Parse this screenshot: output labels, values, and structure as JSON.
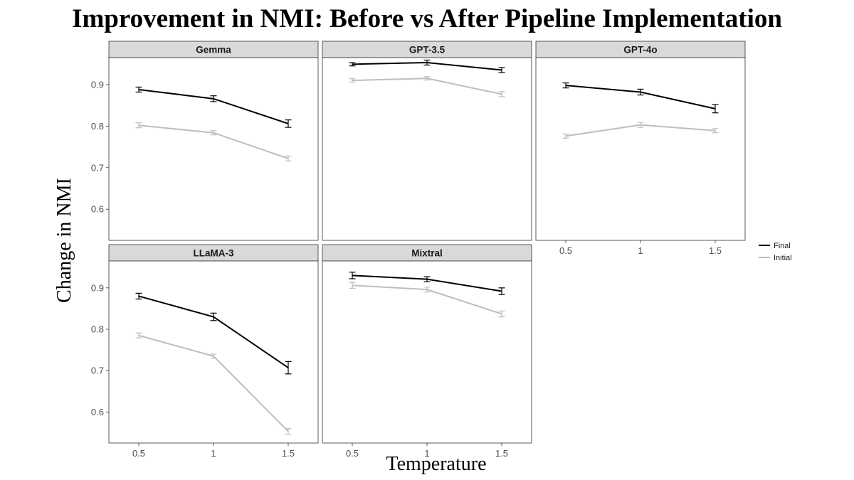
{
  "chart_data": {
    "type": "line",
    "title": "Improvement in NMI: Before vs After Pipeline Implementation",
    "xlabel": "Temperature",
    "ylabel": "Change in NMI",
    "x": [
      0.5,
      1,
      1.5
    ],
    "x_tick_labels": [
      "0.5",
      "1",
      "1.5"
    ],
    "y_ticks": [
      0.6,
      0.7,
      0.8,
      0.9
    ],
    "y_tick_labels": [
      "0.6",
      "0.7",
      "0.8",
      "0.9"
    ],
    "xlim": [
      0.3,
      1.7
    ],
    "ylim": [
      0.525,
      0.965
    ],
    "grid": false,
    "legend_position": "right",
    "legend": [
      {
        "name": "Final",
        "color": "#000000"
      },
      {
        "name": "Initial",
        "color": "#bdbdbd"
      }
    ],
    "panels": [
      {
        "name": "Gemma",
        "series": [
          {
            "name": "Final",
            "values": [
              0.888,
              0.866,
              0.806
            ],
            "errors": [
              0.006,
              0.007,
              0.009
            ]
          },
          {
            "name": "Initial",
            "values": [
              0.802,
              0.784,
              0.722
            ],
            "errors": [
              0.006,
              0.005,
              0.006
            ]
          }
        ]
      },
      {
        "name": "GPT-3.5",
        "series": [
          {
            "name": "Final",
            "values": [
              0.949,
              0.953,
              0.935
            ],
            "errors": [
              0.004,
              0.006,
              0.006
            ]
          },
          {
            "name": "Initial",
            "values": [
              0.91,
              0.915,
              0.877
            ],
            "errors": [
              0.004,
              0.004,
              0.006
            ]
          }
        ]
      },
      {
        "name": "GPT-4o",
        "series": [
          {
            "name": "Final",
            "values": [
              0.898,
              0.882,
              0.842
            ],
            "errors": [
              0.006,
              0.007,
              0.01
            ]
          },
          {
            "name": "Initial",
            "values": [
              0.776,
              0.803,
              0.789
            ],
            "errors": [
              0.005,
              0.006,
              0.005
            ]
          }
        ]
      },
      {
        "name": "LLaMA-3",
        "series": [
          {
            "name": "Final",
            "values": [
              0.88,
              0.83,
              0.707
            ],
            "errors": [
              0.007,
              0.009,
              0.015
            ]
          },
          {
            "name": "Initial",
            "values": [
              0.785,
              0.735,
              0.553
            ],
            "errors": [
              0.006,
              0.005,
              0.007
            ]
          }
        ]
      },
      {
        "name": "Mixtral",
        "series": [
          {
            "name": "Final",
            "values": [
              0.93,
              0.921,
              0.892
            ],
            "errors": [
              0.008,
              0.006,
              0.008
            ]
          },
          {
            "name": "Initial",
            "values": [
              0.906,
              0.896,
              0.837
            ],
            "errors": [
              0.007,
              0.006,
              0.007
            ]
          }
        ]
      }
    ]
  }
}
